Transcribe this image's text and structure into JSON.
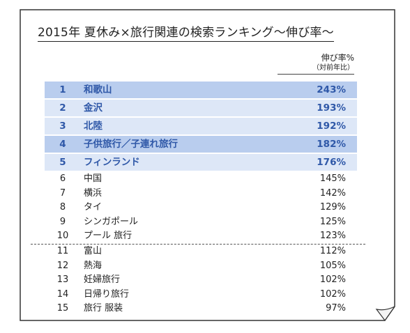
{
  "title": "2015年 夏休み×旅行関連の検索ランキング〜伸び率〜",
  "column_header": {
    "label": "伸び率%",
    "sublabel": "（対前年比）"
  },
  "top_rows": [
    {
      "rank": "1",
      "term": "和歌山",
      "pct": "243%",
      "shade": "dark"
    },
    {
      "rank": "2",
      "term": "金沢",
      "pct": "193%",
      "shade": "light"
    },
    {
      "rank": "3",
      "term": "北陸",
      "pct": "192%",
      "shade": "light"
    },
    {
      "rank": "4",
      "term": "子供旅行／子連れ旅行",
      "pct": "182%",
      "shade": "dark"
    },
    {
      "rank": "5",
      "term": "フィンランド",
      "pct": "176%",
      "shade": "light"
    }
  ],
  "rows_a": [
    {
      "rank": "6",
      "term": "中国",
      "pct": "145%"
    },
    {
      "rank": "7",
      "term": "横浜",
      "pct": "142%"
    },
    {
      "rank": "8",
      "term": "タイ",
      "pct": "129%"
    },
    {
      "rank": "9",
      "term": "シンガポール",
      "pct": "125%"
    },
    {
      "rank": "10",
      "term": "プール 旅行",
      "pct": "123%"
    }
  ],
  "rows_b": [
    {
      "rank": "11",
      "term": "富山",
      "pct": "112%"
    },
    {
      "rank": "12",
      "term": "熱海",
      "pct": "105%"
    },
    {
      "rank": "13",
      "term": "妊婦旅行",
      "pct": "102%"
    },
    {
      "rank": "14",
      "term": "日帰り旅行",
      "pct": "102%"
    },
    {
      "rank": "15",
      "term": "旅行 服装",
      "pct": "97%"
    }
  ],
  "colors": {
    "highlight_dark": "#b9cdee",
    "highlight_light": "#dde7f7",
    "highlight_text": "#2f58a8",
    "border": "#333333"
  }
}
